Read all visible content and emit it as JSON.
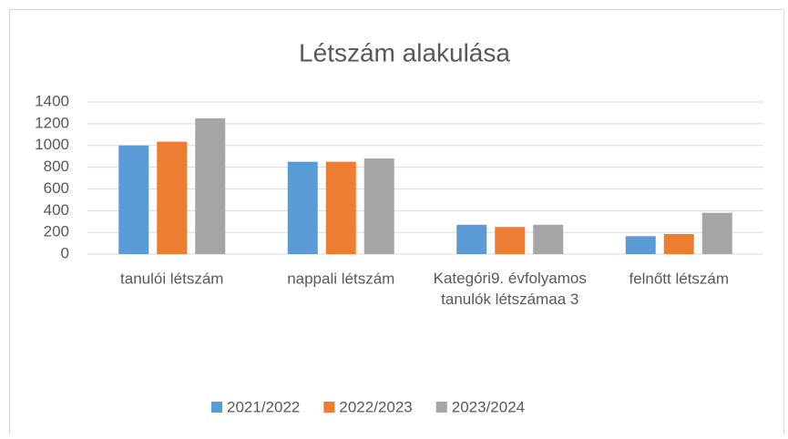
{
  "chart_data": {
    "type": "bar",
    "title": "Létszám alakulása",
    "categories": [
      "tanulói létszám",
      "nappali létszám",
      "Kategóri9. évfolyamos tanulók létszámaa 3",
      "felnőtt létszám"
    ],
    "series": [
      {
        "name": "2021/2022",
        "color": "#5b9bd5",
        "values": [
          1000,
          850,
          270,
          165
        ]
      },
      {
        "name": "2022/2023",
        "color": "#ed7d31",
        "values": [
          1035,
          850,
          250,
          185
        ]
      },
      {
        "name": "2023/2024",
        "color": "#a5a5a5",
        "values": [
          1250,
          880,
          270,
          380
        ]
      }
    ],
    "ylim": [
      0,
      1400
    ],
    "yticks": [
      0,
      200,
      400,
      600,
      800,
      1000,
      1200,
      1400
    ],
    "grid": true,
    "legend": "bottom"
  }
}
